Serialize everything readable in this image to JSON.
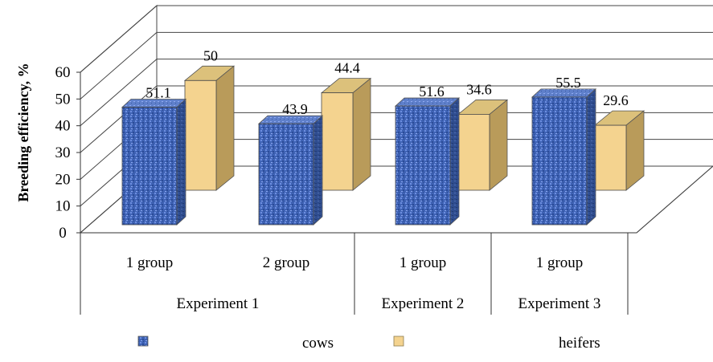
{
  "chart_data": {
    "type": "bar",
    "ylabel": "Breeding efficiency, %",
    "ylim": [
      0,
      60
    ],
    "y_ticks": [
      "0",
      "10",
      "20",
      "30",
      "40",
      "50",
      "60"
    ],
    "grid": true,
    "legend_position": "bottom",
    "categories": [
      {
        "label": "1 group",
        "group": "Experiment 1"
      },
      {
        "label": "2 group",
        "group": "Experiment 1"
      },
      {
        "label": "1 group",
        "group": "Experiment 2"
      },
      {
        "label": "1 group",
        "group": "Experiment 3"
      }
    ],
    "groups": [
      "Experiment 1",
      "Experiment 2",
      "Experiment 3"
    ],
    "series": [
      {
        "name": "cows",
        "values": [
          51.1,
          43.9,
          51.6,
          55.5
        ],
        "labels": [
          "51.1",
          "43.9",
          "51.6",
          "55.5"
        ],
        "color": "#3f63b5",
        "pattern": "textured-blue"
      },
      {
        "name": "heifers",
        "values": [
          50,
          44.4,
          34.6,
          29.6
        ],
        "labels": [
          "50",
          "44.4",
          "34.6",
          "29.6"
        ],
        "color": "#f4d38f",
        "pattern": "solid-beige"
      }
    ]
  }
}
